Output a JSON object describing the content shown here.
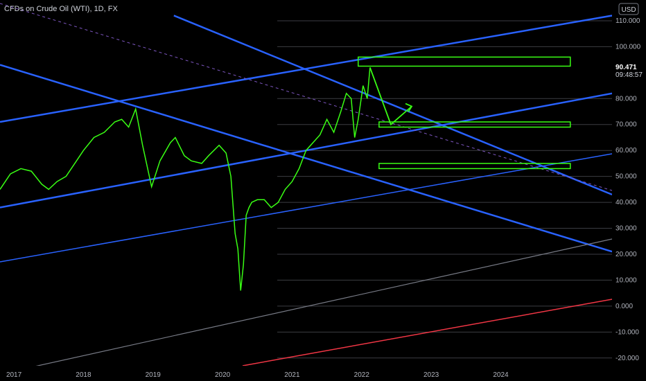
{
  "header": {
    "title": "CFDs on Crude Oil (WTI), 1D, FX"
  },
  "axis": {
    "currency": "USD"
  },
  "price_label": {
    "price": "90.471",
    "countdown": "09:48:57"
  },
  "colors": {
    "price_line": "#39ff14",
    "trend_blue": "#2962ff",
    "thin_blue": "#2962ff",
    "grey_line": "#787b86",
    "red_line": "#f23645",
    "zone_box": "#39ff14",
    "purple_dash": "#7e57c2",
    "background": "#000000"
  },
  "chart_data": {
    "type": "line",
    "title": "CFDs on Crude Oil (WTI), 1D, FX",
    "y_tick_labels": [
      "110.000",
      "100.000",
      "80.000",
      "70.000",
      "60.000",
      "50.000",
      "40.000",
      "30.000",
      "20.000",
      "10.000",
      "0.000",
      "-10.000",
      "-20.000"
    ],
    "x_tick_labels": [
      "2017",
      "2018",
      "2019",
      "2020",
      "2021",
      "2022",
      "2023",
      "2024"
    ],
    "ylim": [
      -23,
      118
    ],
    "xlim": [
      2016.8,
      2025.6
    ],
    "current_price": 90.471,
    "series": [
      {
        "x": [
          2016.8,
          2016.95,
          2017.1,
          2017.25,
          2017.4,
          2017.5,
          2017.62,
          2017.75,
          2017.9,
          2018.0,
          2018.15,
          2018.3,
          2018.45,
          2018.55,
          2018.65,
          2018.75,
          2018.85,
          2018.98,
          2019.1,
          2019.25,
          2019.32,
          2019.45,
          2019.55,
          2019.7,
          2019.8,
          2019.95,
          2020.05,
          2020.12,
          2020.18,
          2020.22,
          2020.26,
          2020.3,
          2020.34,
          2020.38,
          2020.42,
          2020.5,
          2020.6,
          2020.7,
          2020.8,
          2020.9,
          2021.0,
          2021.1,
          2021.2,
          2021.3,
          2021.4,
          2021.5,
          2021.6,
          2021.7,
          2021.78,
          2021.85,
          2021.9,
          2021.95,
          2022.02,
          2022.08,
          2022.12
        ],
        "y": [
          45,
          51,
          53,
          52,
          47,
          45,
          48,
          50,
          56,
          60,
          65,
          67,
          71,
          72,
          69,
          76,
          62,
          46,
          56,
          63,
          65,
          58,
          56,
          55,
          58,
          62,
          59,
          50,
          28,
          22,
          6,
          16,
          35,
          38,
          40,
          41,
          41,
          38,
          40,
          45,
          48,
          53,
          60,
          63,
          66,
          72,
          67,
          75,
          82,
          80,
          65,
          72,
          85,
          80,
          92
        ]
      }
    ],
    "trend_lines": [
      {
        "color": "blue",
        "from": [
          2016.8,
          71
        ],
        "to": [
          2025.6,
          112
        ]
      },
      {
        "color": "blue",
        "from": [
          2016.8,
          38
        ],
        "to": [
          2025.6,
          82
        ]
      },
      {
        "color": "blue",
        "from": [
          2016.8,
          93
        ],
        "to": [
          2025.6,
          21
        ]
      },
      {
        "color": "blue",
        "from": [
          2019.3,
          112
        ],
        "to": [
          2025.6,
          43
        ]
      }
    ],
    "zones": [
      {
        "from": [
          2021.95,
          92.5
        ],
        "to": [
          2025.0,
          96
        ]
      },
      {
        "from": [
          2022.25,
          69
        ],
        "to": [
          2025.0,
          71
        ]
      },
      {
        "from": [
          2022.25,
          53
        ],
        "to": [
          2025.0,
          55
        ]
      }
    ],
    "projection": [
      [
        2022.12,
        92
      ],
      [
        2022.42,
        70
      ],
      [
        2022.72,
        77
      ]
    ]
  }
}
